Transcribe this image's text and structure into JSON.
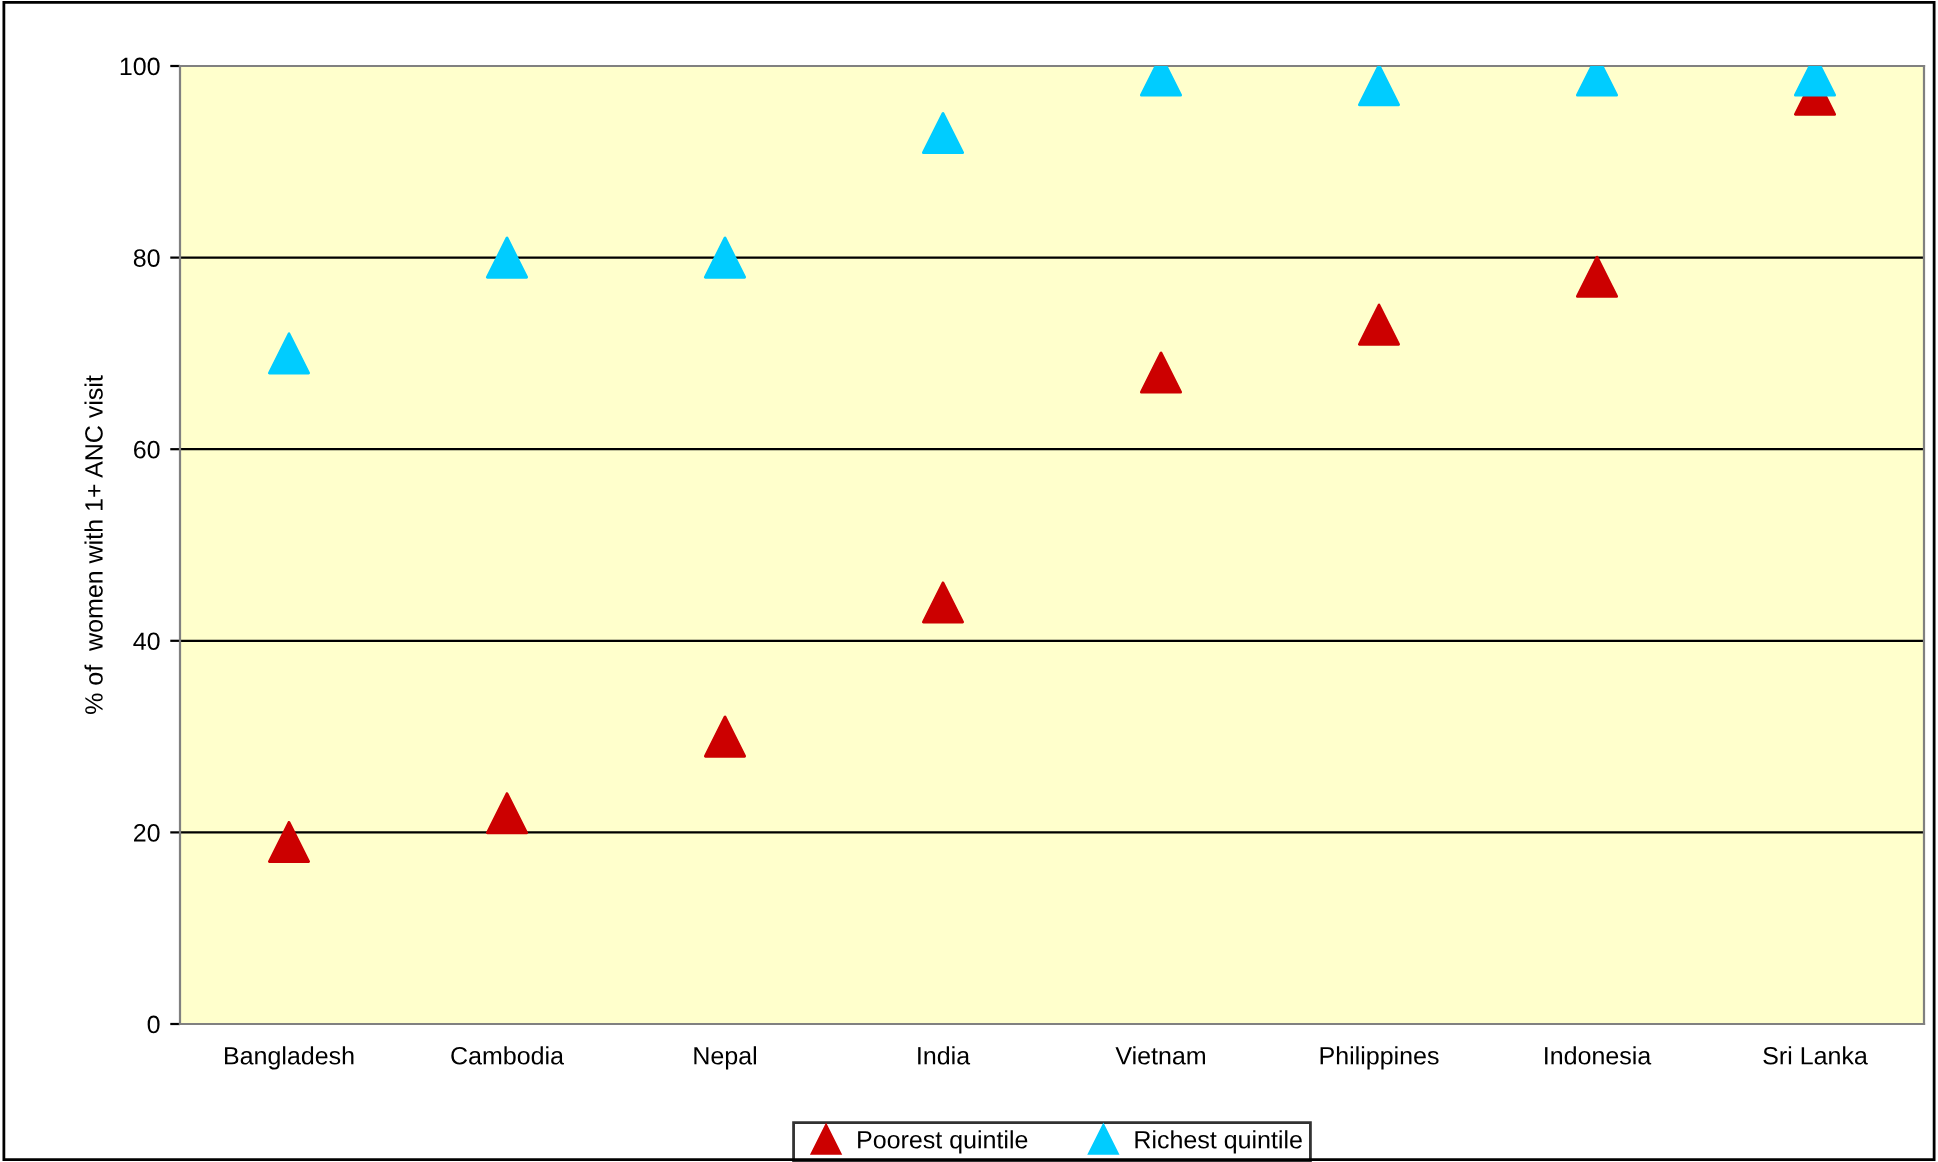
{
  "chart_data": {
    "type": "scatter",
    "ylabel": "% of  women with 1+ ANC visit",
    "categories": [
      "Bangladesh",
      "Cambodia",
      "Nepal",
      "India",
      "Vietnam",
      "Philippines",
      "Indonesia",
      "Sri Lanka"
    ],
    "series": [
      {
        "name": "Poorest quintile",
        "color": "#cc0000",
        "values": [
          19,
          22,
          30,
          44,
          68,
          73,
          78,
          97
        ]
      },
      {
        "name": "Richest quintile",
        "color": "#00ccff",
        "values": [
          70,
          80,
          80,
          93,
          99,
          98,
          99,
          99
        ]
      }
    ],
    "ylim": [
      0,
      100
    ],
    "yticks": [
      0,
      20,
      40,
      60,
      80,
      100
    ],
    "grid": "y",
    "legend": "bottom",
    "marker": "triangle"
  }
}
